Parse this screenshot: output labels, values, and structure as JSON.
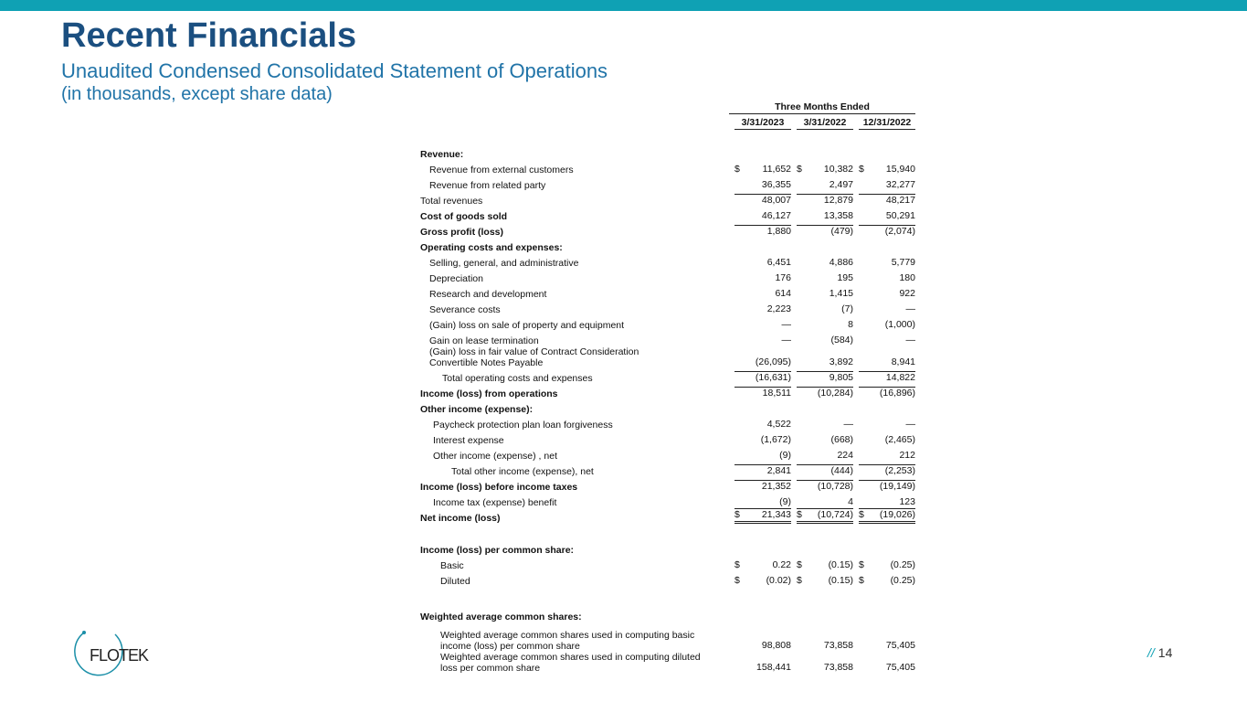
{
  "header": {
    "title": "Recent Financials",
    "subtitle": "Unaudited Condensed Consolidated Statement of Operations",
    "note": "(in thousands, except share data)"
  },
  "table": {
    "group_header": "Three Months Ended",
    "columns": [
      "3/31/2023",
      "3/31/2022",
      "12/31/2022"
    ],
    "rows": [
      {
        "label": "Revenue:"
      },
      {
        "label": "Revenue from external customers",
        "currency": "$",
        "values": [
          "11,652",
          "10,382",
          "15,940"
        ]
      },
      {
        "label": "Revenue from related party",
        "values": [
          "36,355",
          "2,497",
          "32,277"
        ]
      },
      {
        "label": "Total revenues",
        "values": [
          "48,007",
          "12,879",
          "48,217"
        ]
      },
      {
        "label": "Cost of goods sold",
        "values": [
          "46,127",
          "13,358",
          "50,291"
        ]
      },
      {
        "label": "Gross profit (loss)",
        "values": [
          "1,880",
          "(479)",
          "(2,074)"
        ]
      },
      {
        "label": "Operating costs and expenses:"
      },
      {
        "label": "Selling, general, and administrative",
        "values": [
          "6,451",
          "4,886",
          "5,779"
        ]
      },
      {
        "label": "Depreciation",
        "values": [
          "176",
          "195",
          "180"
        ]
      },
      {
        "label": "Research and development",
        "values": [
          "614",
          "1,415",
          "922"
        ]
      },
      {
        "label": "Severance costs",
        "values": [
          "2,223",
          "(7)",
          "—"
        ]
      },
      {
        "label": "(Gain) loss on sale of property and equipment",
        "values": [
          "—",
          "8",
          "(1,000)"
        ]
      },
      {
        "label": "Gain on lease termination",
        "values": [
          "—",
          "(584)",
          "—"
        ]
      },
      {
        "label": "(Gain) loss in fair value of Contract Consideration Convertible Notes Payable",
        "values": [
          "(26,095)",
          "3,892",
          "8,941"
        ]
      },
      {
        "label": "Total operating costs and expenses",
        "values": [
          "(16,631)",
          "9,805",
          "14,822"
        ]
      },
      {
        "label": "Income (loss) from operations",
        "values": [
          "18,511",
          "(10,284)",
          "(16,896)"
        ]
      },
      {
        "label": "Other income (expense):"
      },
      {
        "label": "Paycheck protection plan loan forgiveness",
        "values": [
          "4,522",
          "—",
          "—"
        ]
      },
      {
        "label": "Interest expense",
        "values": [
          "(1,672)",
          "(668)",
          "(2,465)"
        ]
      },
      {
        "label": "Other income (expense) , net",
        "values": [
          "(9)",
          "224",
          "212"
        ]
      },
      {
        "label": "Total other income (expense), net",
        "values": [
          "2,841",
          "(444)",
          "(2,253)"
        ]
      },
      {
        "label": "Income (loss) before income taxes",
        "values": [
          "21,352",
          "(10,728)",
          "(19,149)"
        ]
      },
      {
        "label": "Income tax (expense) benefit",
        "values": [
          "(9)",
          "4",
          "123"
        ]
      },
      {
        "label": "Net income (loss)",
        "currency": "$",
        "values": [
          "21,343",
          "(10,724)",
          "(19,026)"
        ]
      },
      {
        "label": "Income (loss) per common share:"
      },
      {
        "label": "Basic",
        "currency": "$",
        "values": [
          "0.22",
          "(0.15)",
          "(0.25)"
        ]
      },
      {
        "label": "Diluted",
        "currency": "$",
        "values": [
          "(0.02)",
          "(0.15)",
          "(0.25)"
        ]
      },
      {
        "label": "Weighted average common shares:"
      },
      {
        "label": "Weighted average common shares used in computing basic income (loss) per common share",
        "values": [
          "98,808",
          "73,858",
          "75,405"
        ]
      },
      {
        "label": "Weighted average common shares used in computing diluted loss per common share",
        "values": [
          "158,441",
          "73,858",
          "75,405"
        ]
      }
    ]
  },
  "logo": "FLOTEK",
  "page": {
    "marker": "//",
    "number": "14"
  }
}
